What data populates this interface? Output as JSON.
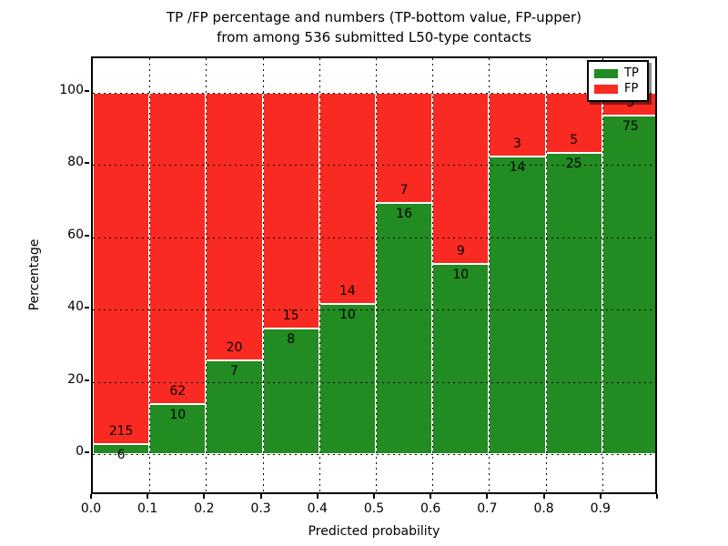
{
  "title": {
    "line1": "TP /FP percentage and numbers (TP-bottom value, FP-upper)",
    "line2": "from among 536 submitted L50-type contacts"
  },
  "axes": {
    "xlabel": "Predicted probability",
    "ylabel": "Percentage",
    "x_tick_labels": [
      "0.0",
      "0.1",
      "0.2",
      "0.3",
      "0.4",
      "0.5",
      "0.6",
      "0.7",
      "0.8",
      "0.9"
    ],
    "y_tick_labels": [
      "0",
      "20",
      "40",
      "60",
      "80",
      "100"
    ],
    "y_tick_values": [
      0,
      20,
      40,
      60,
      80,
      100
    ]
  },
  "legend": {
    "items": [
      {
        "label": "TP",
        "color": "#228b22"
      },
      {
        "label": "FP",
        "color": "#f92a21"
      }
    ]
  },
  "chart_data": {
    "type": "bar",
    "stacked": true,
    "normalized": "each bin stacked to 100%",
    "title": "TP /FP percentage and numbers (TP-bottom value, FP-upper) from among 536 submitted L50-type contacts",
    "xlabel": "Predicted probability",
    "ylabel": "Percentage",
    "grid": true,
    "legend_position": "upper right",
    "total_contacts": 536,
    "bin_edges": [
      0.0,
      0.1,
      0.2,
      0.3,
      0.4,
      0.5,
      0.6,
      0.7,
      0.8,
      0.9,
      1.0
    ],
    "categories": [
      "0.0-0.1",
      "0.1-0.2",
      "0.2-0.3",
      "0.3-0.4",
      "0.4-0.5",
      "0.5-0.6",
      "0.6-0.7",
      "0.7-0.8",
      "0.8-0.9",
      "0.9-1.0"
    ],
    "series": [
      {
        "name": "TP",
        "color": "#228b22",
        "counts": [
          6,
          10,
          7,
          8,
          10,
          16,
          10,
          14,
          25,
          75
        ]
      },
      {
        "name": "FP",
        "color": "#f92a21",
        "counts": [
          215,
          62,
          20,
          15,
          14,
          7,
          9,
          3,
          5,
          5
        ]
      }
    ],
    "tp_percent_approx": [
      2.7,
      13.9,
      25.9,
      34.8,
      41.7,
      69.6,
      52.6,
      82.4,
      83.3,
      93.8
    ],
    "ylim": [
      0,
      100
    ],
    "y_ticks": [
      0,
      20,
      40,
      60,
      80,
      100
    ]
  }
}
